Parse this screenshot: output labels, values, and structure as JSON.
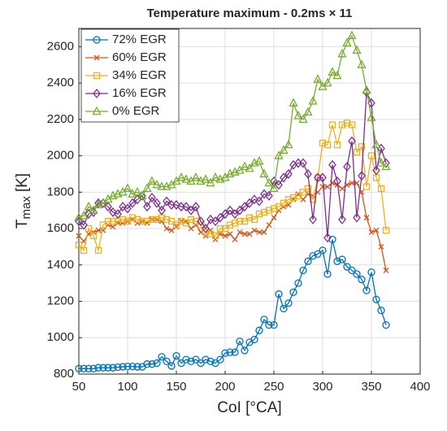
{
  "chart_data": {
    "type": "line",
    "title": "Temperature maximum - 0.2ms × 11",
    "xlabel": "CoI [°CA]",
    "ylabel": "T",
    "ylabel_sub": "max",
    "ylabel_unit": "[K]",
    "x": [
      50,
      55,
      60,
      65,
      70,
      75,
      80,
      85,
      90,
      95,
      100,
      105,
      110,
      115,
      120,
      125,
      130,
      135,
      140,
      145,
      150,
      155,
      160,
      165,
      170,
      175,
      180,
      185,
      190,
      195,
      200,
      205,
      210,
      215,
      220,
      225,
      230,
      235,
      240,
      245,
      250,
      255,
      260,
      265,
      270,
      275,
      280,
      285,
      290,
      295,
      300,
      305,
      310,
      315,
      320,
      325,
      330,
      335,
      340,
      345,
      350,
      355,
      360,
      365
    ],
    "series": [
      {
        "name": "72% EGR",
        "color": "#0072bd",
        "marker": "circle",
        "values": [
          830,
          830,
          830,
          830,
          835,
          835,
          835,
          835,
          838,
          840,
          842,
          842,
          840,
          840,
          855,
          855,
          860,
          895,
          870,
          845,
          900,
          860,
          880,
          870,
          880,
          860,
          880,
          870,
          860,
          880,
          915,
          920,
          920,
          980,
          930,
          975,
          990,
          1040,
          1100,
          1070,
          1070,
          1240,
          1160,
          1190,
          1250,
          1300,
          1370,
          1420,
          1450,
          1460,
          1480,
          1350,
          1540,
          1420,
          1430,
          1390,
          1370,
          1350,
          1320,
          1260,
          1360,
          1210,
          1150,
          1070
        ]
      },
      {
        "name": "60% EGR",
        "color": "#d95319",
        "marker": "x",
        "values": [
          1560,
          1530,
          1570,
          1580,
          1590,
          1590,
          1620,
          1610,
          1630,
          1630,
          1640,
          1650,
          1630,
          1640,
          1630,
          1650,
          1650,
          1640,
          1600,
          1590,
          1610,
          1640,
          1640,
          1600,
          1620,
          1580,
          1560,
          1590,
          1540,
          1570,
          1560,
          1570,
          1540,
          1580,
          1570,
          1570,
          1590,
          1580,
          1580,
          1620,
          1660,
          1700,
          1720,
          1730,
          1760,
          1790,
          1760,
          1790,
          1780,
          1800,
          1830,
          1830,
          1850,
          1840,
          1820,
          1840,
          1850,
          1850,
          1800,
          1660,
          1580,
          1590,
          1500,
          1370
        ]
      },
      {
        "name": "34% EGR",
        "color": "#edb120",
        "marker": "square",
        "values": [
          1510,
          1480,
          1600,
          1560,
          1480,
          1620,
          1640,
          1640,
          1640,
          1650,
          1640,
          1660,
          1650,
          1640,
          1640,
          1650,
          1650,
          1660,
          1650,
          1640,
          1620,
          1640,
          1630,
          1650,
          1640,
          1620,
          1580,
          1570,
          1560,
          1600,
          1600,
          1620,
          1630,
          1640,
          1640,
          1660,
          1650,
          1680,
          1690,
          1700,
          1710,
          1720,
          1740,
          1760,
          1770,
          1780,
          1800,
          1820,
          1760,
          1880,
          2070,
          2060,
          2170,
          2060,
          2170,
          2180,
          2170,
          2020,
          2050,
          1830,
          2000,
          1880,
          1820,
          1590
        ]
      },
      {
        "name": "16% EGR",
        "color": "#7e2f8e",
        "marker": "diamond",
        "values": [
          1640,
          1620,
          1680,
          1690,
          1740,
          1740,
          1720,
          1690,
          1680,
          1720,
          1710,
          1740,
          1760,
          1780,
          1720,
          1770,
          1740,
          1700,
          1750,
          1730,
          1730,
          1720,
          1720,
          1700,
          1720,
          1640,
          1600,
          1650,
          1640,
          1660,
          1680,
          1700,
          1680,
          1700,
          1720,
          1740,
          1760,
          1750,
          1790,
          1780,
          1860,
          1840,
          1880,
          1900,
          1950,
          1960,
          1960,
          1900,
          1650,
          1880,
          1880,
          1550,
          1950,
          1860,
          1650,
          1940,
          2080,
          1660,
          1890,
          2350,
          2290,
          1920,
          2040,
          1960
        ]
      },
      {
        "name": "0% EGR",
        "color": "#77ac30",
        "marker": "triangle",
        "values": [
          1660,
          1670,
          1720,
          1700,
          1730,
          1740,
          1760,
          1780,
          1790,
          1800,
          1820,
          1790,
          1800,
          1780,
          1820,
          1860,
          1840,
          1830,
          1830,
          1840,
          1860,
          1880,
          1870,
          1860,
          1880,
          1860,
          1870,
          1850,
          1880,
          1870,
          1880,
          1900,
          1910,
          1920,
          1940,
          1930,
          1960,
          1970,
          1900,
          1850,
          1820,
          2000,
          2030,
          2060,
          2290,
          2220,
          2200,
          2240,
          2300,
          2420,
          2380,
          2400,
          2460,
          2440,
          2560,
          2620,
          2660,
          2580,
          2500,
          2360,
          2210,
          2060,
          1960,
          1940
        ]
      }
    ],
    "xlim": [
      50,
      400
    ],
    "xticks": [
      50,
      100,
      150,
      200,
      250,
      300,
      350,
      400
    ],
    "ylim": [
      800,
      2700
    ],
    "yticks": [
      800,
      1000,
      1200,
      1400,
      1600,
      1800,
      2000,
      2200,
      2400,
      2600
    ],
    "grid": true,
    "legend": "upper left"
  }
}
